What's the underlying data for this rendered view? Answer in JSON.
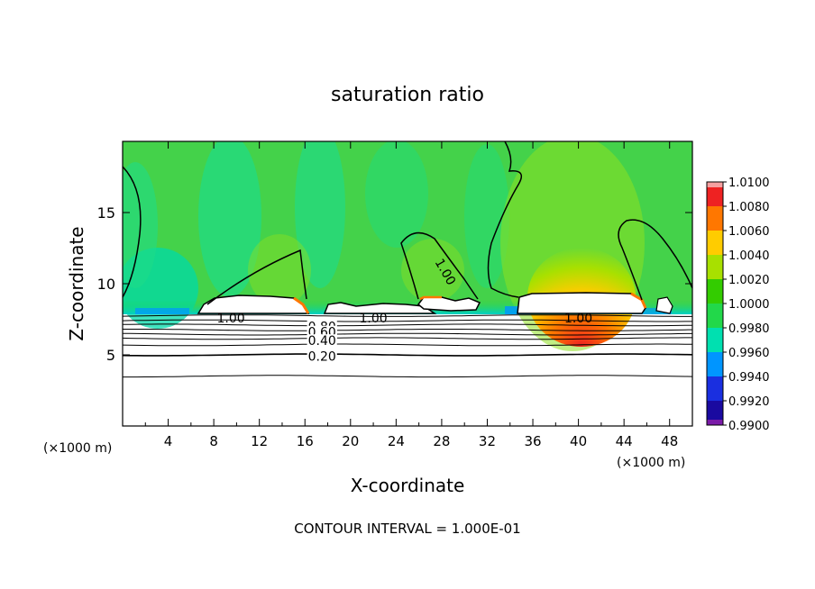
{
  "chart_data": {
    "type": "heatmap",
    "title": "saturation ratio",
    "xlabel": "X-coordinate",
    "ylabel": "Z-coordinate",
    "x_unit_left": "(×1000 m)",
    "x_unit_right": "(×1000 m)",
    "xlim": [
      0,
      50
    ],
    "ylim": [
      0,
      20
    ],
    "x_ticks": [
      "4",
      "8",
      "12",
      "16",
      "20",
      "24",
      "28",
      "32",
      "36",
      "40",
      "44",
      "48"
    ],
    "y_ticks": [
      "5",
      "10",
      "15"
    ],
    "footer": "CONTOUR INTERVAL = 1.000E-01",
    "colorbar": {
      "levels": [
        "1.0100",
        "1.0080",
        "1.0060",
        "1.0040",
        "1.0020",
        "1.0000",
        "0.9980",
        "0.9960",
        "0.9940",
        "0.9920",
        "0.9900"
      ],
      "colors": [
        "#ee2222",
        "#ff7700",
        "#ffcc00",
        "#a8e000",
        "#33cc00",
        "#22d84a",
        "#00e0b0",
        "#0095ff",
        "#1a2fe0",
        "#1a0aa0"
      ],
      "top_color": "#f5a0a0",
      "bottom_color": "#7a1aa8"
    },
    "contour_labels": [
      {
        "text": "1.00",
        "x": 9.5,
        "y": 7.6
      },
      {
        "text": "1.00",
        "x": 22.0,
        "y": 7.6
      },
      {
        "text": "1.00",
        "x": 40.0,
        "y": 7.6
      },
      {
        "text": "1.00",
        "x": 28.0,
        "y": 11.0
      },
      {
        "text": "0.80",
        "x": 17.5,
        "y": 7.0
      },
      {
        "text": "0.60",
        "x": 17.5,
        "y": 6.6
      },
      {
        "text": "0.40",
        "x": 17.5,
        "y": 6.0
      },
      {
        "text": "0.20",
        "x": 17.5,
        "y": 4.9
      }
    ],
    "low_level_contours": [
      {
        "level": 0.9,
        "z": 7.75
      },
      {
        "level": 0.8,
        "z": 7.4
      },
      {
        "level": 0.7,
        "z": 7.1
      },
      {
        "level": 0.6,
        "z": 6.75
      },
      {
        "level": 0.5,
        "z": 6.45
      },
      {
        "level": 0.4,
        "z": 6.15
      },
      {
        "level": 0.3,
        "z": 5.7
      },
      {
        "level": 0.2,
        "z": 5.0
      },
      {
        "level": 0.1,
        "z": 3.5
      }
    ],
    "cloud_bases_z": 7.9
  }
}
